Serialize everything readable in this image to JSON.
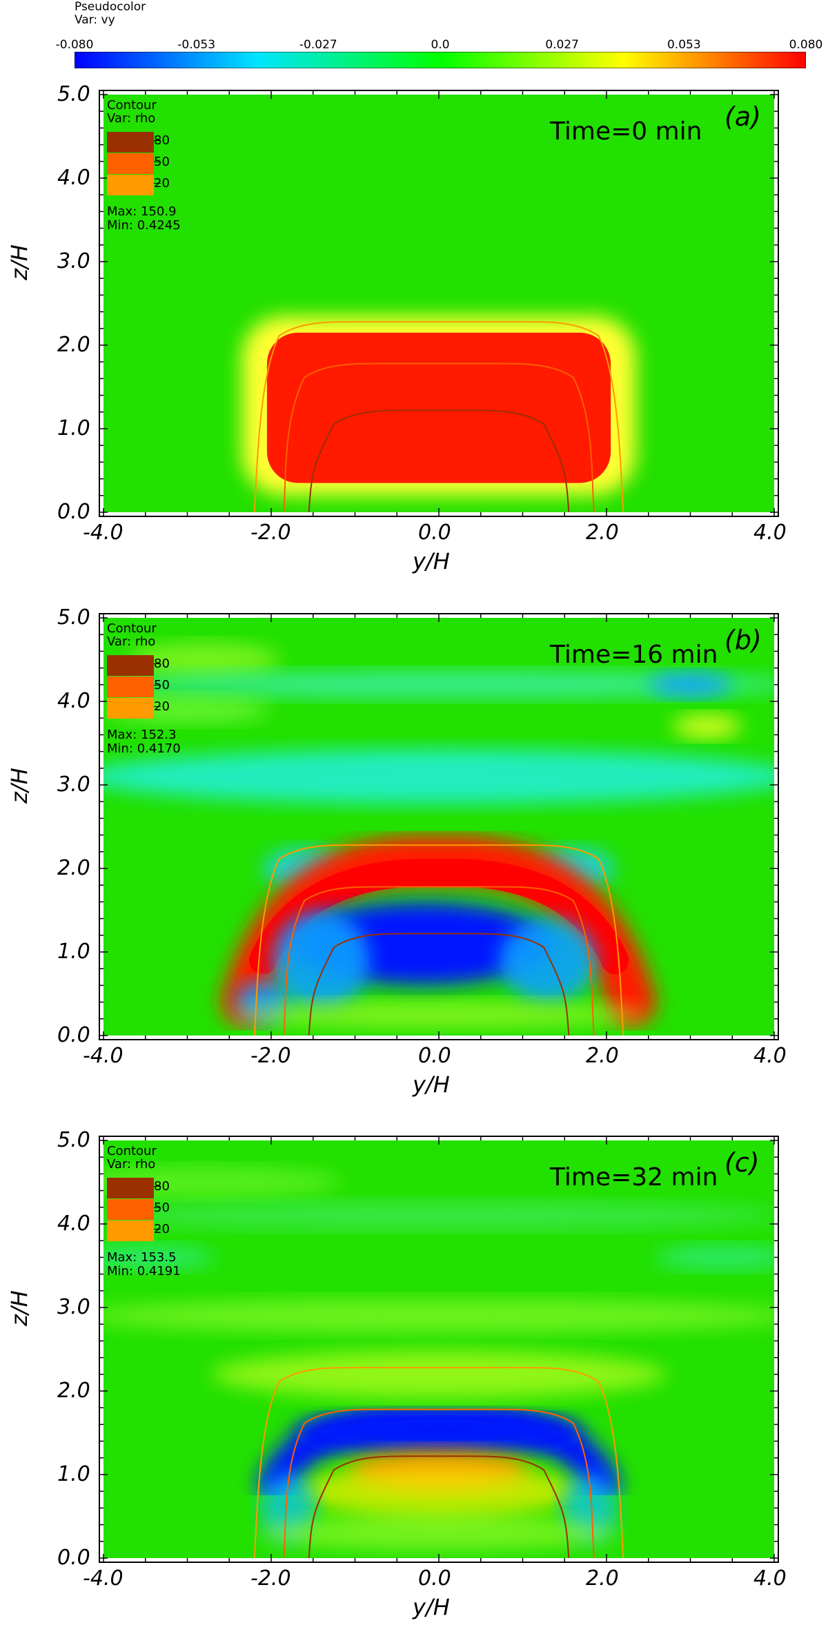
{
  "colorbar": {
    "title_line1": "Pseudocolor",
    "title_line2": "Var: vy",
    "ticks": [
      "-0.080",
      "-0.053",
      "-0.027",
      "0.0",
      "0.027",
      "0.053",
      "0.080"
    ],
    "stops": [
      "#0000ff",
      "#00e5ff",
      "#00ff00",
      "#ffff00",
      "#ff0000"
    ]
  },
  "legend": {
    "title_line1": "Contour",
    "title_line2": "Var: rho",
    "levels": [
      "80",
      "50",
      "20"
    ],
    "level_colors": [
      "#9a3000",
      "#ff6000",
      "#ff9a00"
    ]
  },
  "panels": [
    {
      "label": "(a)",
      "time": "Time=0 min",
      "max": "Max:  150.9",
      "min": "Min:  0.4245"
    },
    {
      "label": "(b)",
      "time": "Time=16 min",
      "max": "Max:  152.3",
      "min": "Min:  0.4170"
    },
    {
      "label": "(c)",
      "time": "Time=32 min",
      "max": "Max:  153.5",
      "min": "Min:  0.4191"
    }
  ],
  "axes": {
    "xlabel": "y/H",
    "ylabel": "z/H",
    "xticks": [
      "-4.0",
      "-2.0",
      "0.0",
      "2.0",
      "4.0"
    ],
    "yticks": [
      "0.0",
      "1.0",
      "2.0",
      "3.0",
      "4.0",
      "5.0"
    ],
    "xlim": [
      -4.0,
      4.0
    ],
    "ylim": [
      0.0,
      5.0
    ]
  },
  "chart_data": [
    {
      "type": "heatmap",
      "title": "(a) Time=0 min",
      "variable": "vy",
      "color_range": [
        -0.08,
        0.08
      ],
      "xlabel": "y/H",
      "ylabel": "z/H",
      "xlim": [
        -4.0,
        4.0
      ],
      "ylim": [
        0.0,
        5.0
      ],
      "contours": {
        "variable": "rho",
        "levels": [
          80,
          50,
          20
        ]
      },
      "max": 150.9,
      "min": 0.4245
    },
    {
      "type": "heatmap",
      "title": "(b) Time=16 min",
      "variable": "vy",
      "color_range": [
        -0.08,
        0.08
      ],
      "xlabel": "y/H",
      "ylabel": "z/H",
      "xlim": [
        -4.0,
        4.0
      ],
      "ylim": [
        0.0,
        5.0
      ],
      "contours": {
        "variable": "rho",
        "levels": [
          80,
          50,
          20
        ]
      },
      "max": 152.3,
      "min": 0.417
    },
    {
      "type": "heatmap",
      "title": "(c) Time=32 min",
      "variable": "vy",
      "color_range": [
        -0.08,
        0.08
      ],
      "xlabel": "y/H",
      "ylabel": "z/H",
      "xlim": [
        -4.0,
        4.0
      ],
      "ylim": [
        0.0,
        5.0
      ],
      "contours": {
        "variable": "rho",
        "levels": [
          80,
          50,
          20
        ]
      },
      "max": 153.5,
      "min": 0.4191
    }
  ]
}
